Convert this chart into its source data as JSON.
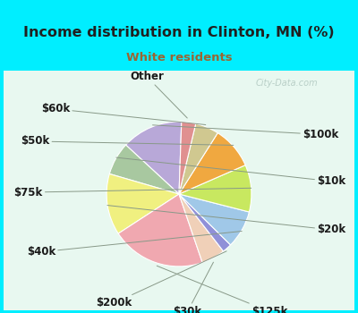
{
  "title": "Income distribution in Clinton, MN (%)",
  "subtitle": "White residents",
  "watermark": "City-Data.com",
  "labels": [
    "$100k",
    "$10k",
    "$20k",
    "$125k",
    "$30k",
    "$200k",
    "$40k",
    "$75k",
    "$50k",
    "$60k",
    "Other"
  ],
  "sizes": [
    13,
    7,
    13,
    20,
    5,
    2,
    8,
    10,
    9,
    5,
    3
  ],
  "colors": [
    "#b8a8d8",
    "#a8c8a0",
    "#f0f080",
    "#f0a8b0",
    "#f0d0b8",
    "#9090d8",
    "#a0c8e8",
    "#c8e860",
    "#f0a840",
    "#d0c890",
    "#e09090"
  ],
  "bg_color_top": "#00eeff",
  "bg_color_chart_tl": "#c8f0e8",
  "bg_color_chart_br": "#e8f8f0",
  "title_color": "#202020",
  "subtitle_color": "#996633",
  "watermark_color": "#b0c8c0",
  "startangle": 88,
  "label_fontsize": 8.5,
  "title_fontsize": 11.5,
  "subtitle_fontsize": 9.5
}
